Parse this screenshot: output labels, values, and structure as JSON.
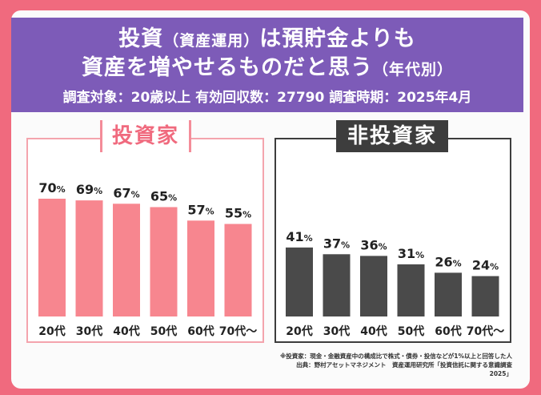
{
  "header": {
    "title_line1_a": "投資",
    "title_line1_b": "（資産運用）",
    "title_line1_c": "は預貯金よりも",
    "title_line2_a": "資産を増やせるものだと思う",
    "title_line2_b": "（年代別）",
    "subtitle": "調査対象：20歳以上 有効回収数：27790 調査時期：2025年4月"
  },
  "footnote": {
    "line1": "※投資家：現金・金融資産中の構成比で株式・債券・投信などが1%以上と回答した人",
    "line2": "出典：野村アセットマネジメント　資産運用研究所「投資信託に関する意識調査2025」"
  },
  "colors": {
    "background": "#f06a7e",
    "header": "#7d5bb8",
    "investor_bar": "#f7868f",
    "non_investor_bar": "#4a4a4a"
  },
  "chart_data": [
    {
      "type": "bar",
      "title": "投資家",
      "categories": [
        "20代",
        "30代",
        "40代",
        "50代",
        "60代",
        "70代～"
      ],
      "values": [
        70,
        69,
        67,
        65,
        57,
        55
      ],
      "value_suffix": "%",
      "ylim": [
        0,
        100
      ]
    },
    {
      "type": "bar",
      "title": "非投資家",
      "categories": [
        "20代",
        "30代",
        "40代",
        "50代",
        "60代",
        "70代～"
      ],
      "values": [
        41,
        37,
        36,
        31,
        26,
        24
      ],
      "value_suffix": "%",
      "ylim": [
        0,
        100
      ]
    }
  ]
}
